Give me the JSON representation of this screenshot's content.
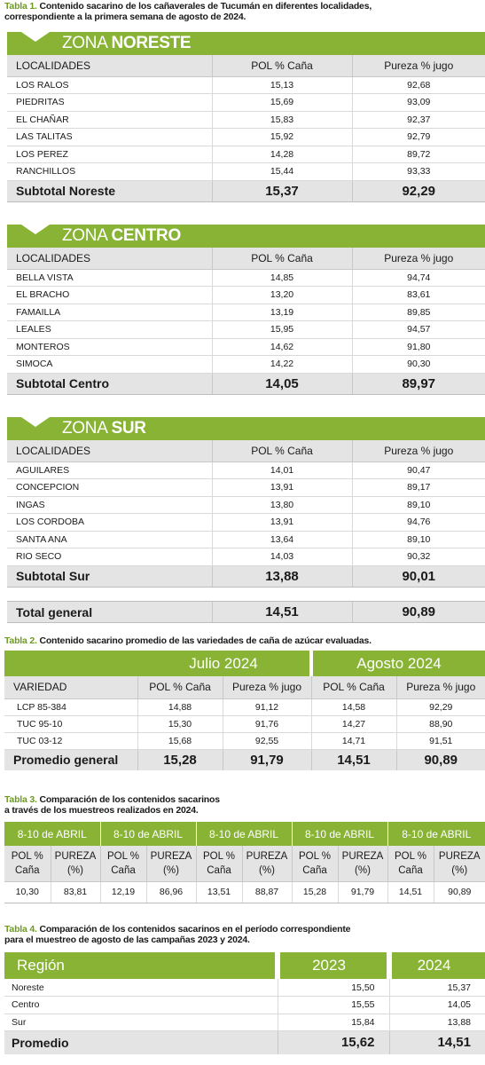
{
  "table1": {
    "caption_label": "Tabla 1.",
    "caption_line1": " Contenido sacarino de los cañaverales de Tucumán en diferentes localidades,",
    "caption_line2": "correspondiente a la primera semana de agosto de 2024.",
    "headers": {
      "localidades": "LOCALIDADES",
      "pol": "POL % Caña",
      "pureza": "Pureza % jugo"
    },
    "zones": [
      {
        "prefix": "ZONA ",
        "name": "NORESTE",
        "rows": [
          {
            "localidad": "LOS RALOS",
            "pol": "15,13",
            "pureza": "92,68"
          },
          {
            "localidad": "PIEDRITAS",
            "pol": "15,69",
            "pureza": "93,09"
          },
          {
            "localidad": "EL CHAÑAR",
            "pol": "15,83",
            "pureza": "92,37"
          },
          {
            "localidad": "LAS TALITAS",
            "pol": "15,92",
            "pureza": "92,79"
          },
          {
            "localidad": "LOS PEREZ",
            "pol": "14,28",
            "pureza": "89,72"
          },
          {
            "localidad": "RANCHILLOS",
            "pol": "15,44",
            "pureza": "93,33"
          }
        ],
        "subtotal": {
          "label": "Subtotal Noreste",
          "pol": "15,37",
          "pureza": "92,29"
        }
      },
      {
        "prefix": "ZONA ",
        "name": "CENTRO",
        "rows": [
          {
            "localidad": "BELLA VISTA",
            "pol": "14,85",
            "pureza": "94,74"
          },
          {
            "localidad": "EL BRACHO",
            "pol": "13,20",
            "pureza": "83,61"
          },
          {
            "localidad": "FAMAILLA",
            "pol": "13,19",
            "pureza": "89,85"
          },
          {
            "localidad": "LEALES",
            "pol": "15,95",
            "pureza": "94,57"
          },
          {
            "localidad": "MONTEROS",
            "pol": "14,62",
            "pureza": "91,80"
          },
          {
            "localidad": "SIMOCA",
            "pol": "14,22",
            "pureza": "90,30"
          }
        ],
        "subtotal": {
          "label": "Subtotal Centro",
          "pol": "14,05",
          "pureza": "89,97"
        }
      },
      {
        "prefix": "ZONA ",
        "name": "SUR",
        "rows": [
          {
            "localidad": "AGUILARES",
            "pol": "14,01",
            "pureza": "90,47"
          },
          {
            "localidad": "CONCEPCION",
            "pol": "13,91",
            "pureza": "89,17"
          },
          {
            "localidad": "INGAS",
            "pol": "13,80",
            "pureza": "89,10"
          },
          {
            "localidad": "LOS CORDOBA",
            "pol": "13,91",
            "pureza": "94,76"
          },
          {
            "localidad": "SANTA ANA",
            "pol": "13,64",
            "pureza": "89,10"
          },
          {
            "localidad": "RIO SECO",
            "pol": "14,03",
            "pureza": "90,32"
          }
        ],
        "subtotal": {
          "label": "Subtotal Sur",
          "pol": "13,88",
          "pureza": "90,01"
        }
      }
    ],
    "total": {
      "label": "Total general",
      "pol": "14,51",
      "pureza": "90,89"
    }
  },
  "table2": {
    "caption_label": "Tabla 2.",
    "caption_text": " Contenido sacarino promedio de las variedades de caña de azúcar evaluadas.",
    "month1": "Julio 2024",
    "month2": "Agosto 2024",
    "headers": {
      "variedad": "VARIEDAD",
      "pol": "POL % Caña",
      "pureza": "Pureza % jugo"
    },
    "rows": [
      {
        "variedad": "LCP 85-384",
        "pol_jul": "14,88",
        "pur_jul": "91,12",
        "pol_ago": "14,58",
        "pur_ago": "92,29"
      },
      {
        "variedad": "TUC 95-10",
        "pol_jul": "15,30",
        "pur_jul": "91,76",
        "pol_ago": "14,27",
        "pur_ago": "88,90"
      },
      {
        "variedad": "TUC 03-12",
        "pol_jul": "15,68",
        "pur_jul": "92,55",
        "pol_ago": "14,71",
        "pur_ago": "91,51"
      }
    ],
    "promedio": {
      "label": "Promedio general",
      "pol_jul": "15,28",
      "pur_jul": "91,79",
      "pol_ago": "14,51",
      "pur_ago": "90,89"
    }
  },
  "table3": {
    "caption_label": "Tabla 3.",
    "caption_line1": " Comparación de los contenidos sacarinos",
    "caption_line2": "a través de los muestreos realizados en 2024.",
    "periods": [
      "8-10 de ABRIL",
      "8-10 de ABRIL",
      "8-10 de ABRIL",
      "8-10 de ABRIL",
      "8-10 de ABRIL"
    ],
    "pol_line1": "POL %",
    "pol_line2": "Caña",
    "pureza_line1": "PUREZA",
    "pureza_line2": "(%)",
    "values": [
      "10,30",
      "83,81",
      "12,19",
      "86,96",
      "13,51",
      "88,87",
      "15,28",
      "91,79",
      "14,51",
      "90,89"
    ]
  },
  "table4": {
    "caption_label": "Tabla 4.",
    "caption_line1": " Comparación de los contenidos sacarinos en el período correspondiente",
    "caption_line2": "para el muestreo de agosto de las campañas 2023 y 2024.",
    "headers": {
      "region": "Región",
      "y1": "2023",
      "y2": "2024"
    },
    "rows": [
      {
        "region": "Noreste",
        "y1": "15,50",
        "y2": "15,37"
      },
      {
        "region": "Centro",
        "y1": "15,55",
        "y2": "14,05"
      },
      {
        "region": "Sur",
        "y1": "15,84",
        "y2": "13,88"
      }
    ],
    "promedio": {
      "region": "Promedio",
      "y1": "15,62",
      "y2": "14,51"
    }
  },
  "colors": {
    "accent_green": "#88b334",
    "caption_green": "#6d9a1e",
    "header_gray": "#e4e4e4"
  }
}
